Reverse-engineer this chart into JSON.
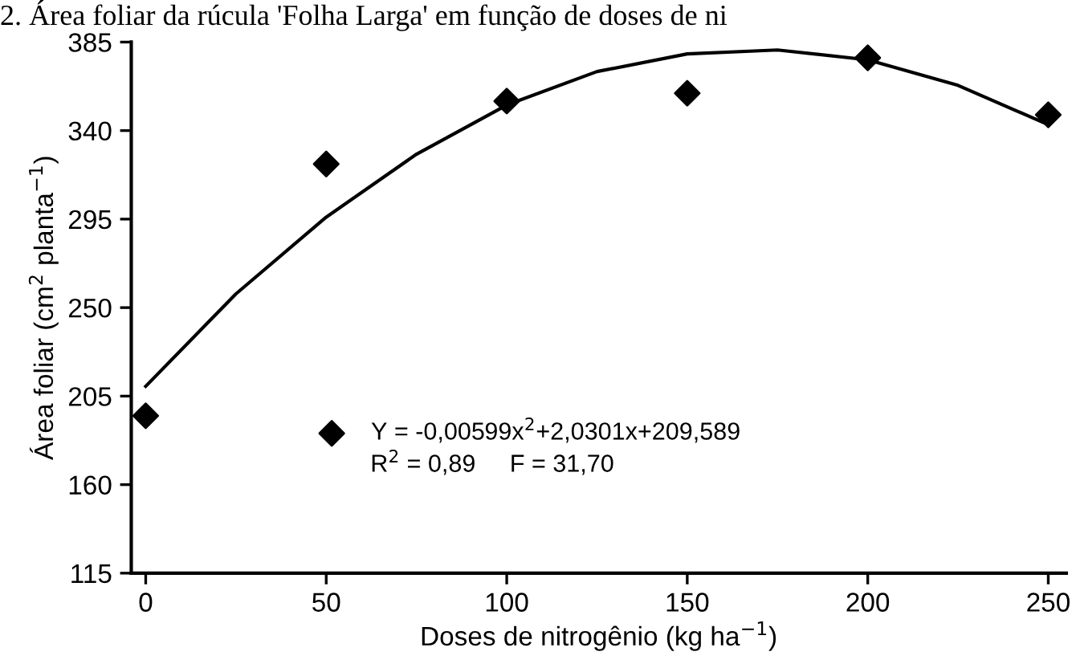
{
  "chart_data": {
    "type": "scatter",
    "title": "2. Área foliar da rúcula 'Folha Larga' em função de doses de ni",
    "xlabel": "Doses de nitrogênio (kg ha$^{−1}$)",
    "ylabel": "Área foliar (cm$^{2}$ planta$^{−1}$)",
    "x": [
      0,
      50,
      100,
      150,
      200,
      250
    ],
    "series": [
      {
        "name": "Y = -0,00599x$^{2}$+2,0301x+209,589",
        "color": "#000000",
        "marker": "diamond",
        "values": [
          195,
          323,
          355,
          359,
          377,
          348
        ]
      },
      {
        "color": "#000000",
        "type": "line",
        "x": [
          0,
          25,
          50,
          75,
          100,
          125,
          150,
          175,
          200,
          225,
          250
        ],
        "values": [
          210,
          257,
          296,
          328,
          353,
          370,
          379,
          381,
          376,
          363,
          343
        ]
      }
    ],
    "annotations": [
      "R$^{2}$ = 0,89     F = 31,70"
    ],
    "xlim": [
      -4,
      255
    ],
    "xticks": [
      0,
      50,
      100,
      150,
      200,
      250
    ],
    "ylim": [
      115,
      385
    ],
    "yticks": [
      115,
      160,
      205,
      250,
      295,
      340,
      385
    ],
    "grid": false,
    "legend": "bottom"
  }
}
